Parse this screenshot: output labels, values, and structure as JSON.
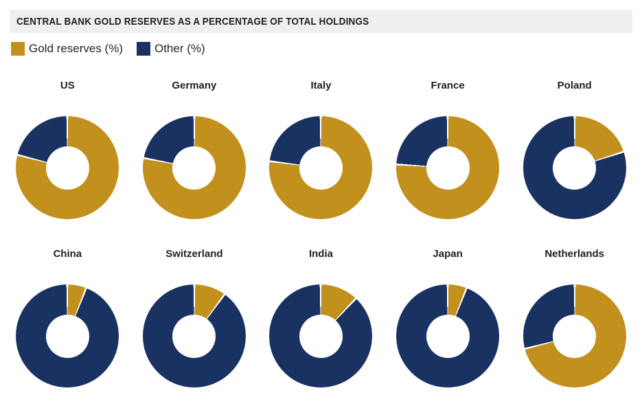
{
  "header": {
    "title": "CENTRAL BANK GOLD RESERVES AS A PERCENTAGE OF TOTAL HOLDINGS"
  },
  "legend": {
    "items": [
      {
        "label": "Gold reserves (%)",
        "color": "#C2901D"
      },
      {
        "label": "Other (%)",
        "color": "#1A3262"
      }
    ]
  },
  "chart_data": {
    "type": "pie",
    "variant": "donut-small-multiples",
    "title": "CENTRAL BANK GOLD RESERVES AS A PERCENTAGE OF TOTAL HOLDINGS",
    "series_labels": [
      "Gold reserves (%)",
      "Other (%)"
    ],
    "colors": {
      "gold": "#C2901D",
      "other": "#1A3262",
      "seam": "#FFFFFF",
      "title_bar_bg": "#EFEFEF",
      "text": "#1F2023"
    },
    "layout": {
      "rows": 2,
      "cols": 5,
      "start_angle_deg": 0,
      "direction": "clockwise",
      "inner_radius_ratio": 0.42,
      "legend_position": "top-left",
      "grid": false
    },
    "countries": [
      {
        "name": "US",
        "gold_pct": 79,
        "other_pct": 21
      },
      {
        "name": "Germany",
        "gold_pct": 78,
        "other_pct": 22
      },
      {
        "name": "Italy",
        "gold_pct": 77,
        "other_pct": 23
      },
      {
        "name": "France",
        "gold_pct": 76,
        "other_pct": 24
      },
      {
        "name": "Poland",
        "gold_pct": 20,
        "other_pct": 80
      },
      {
        "name": "China",
        "gold_pct": 6,
        "other_pct": 94
      },
      {
        "name": "Switzerland",
        "gold_pct": 10,
        "other_pct": 90
      },
      {
        "name": "India",
        "gold_pct": 12,
        "other_pct": 88
      },
      {
        "name": "Japan",
        "gold_pct": 6,
        "other_pct": 94
      },
      {
        "name": "Netherlands",
        "gold_pct": 71,
        "other_pct": 29
      }
    ]
  }
}
